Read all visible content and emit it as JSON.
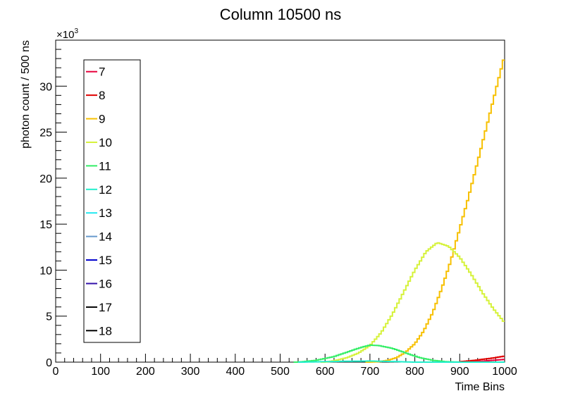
{
  "chart_data": {
    "type": "line",
    "title": "Column 10500 ns",
    "xlabel": "Time Bins",
    "ylabel": "photon count / 500 ns",
    "y_multiplier_label": "×10",
    "y_multiplier_exp": "3",
    "xlim": [
      0,
      1000
    ],
    "ylim": [
      0,
      35
    ],
    "x_ticks": [
      0,
      100,
      200,
      300,
      400,
      500,
      600,
      700,
      800,
      900,
      1000
    ],
    "y_ticks": [
      0,
      5,
      10,
      15,
      20,
      25,
      30
    ],
    "grid": false,
    "legend_position": "top-left",
    "series": [
      {
        "name": "7",
        "color": "#e8003a",
        "x": [
          900,
          925,
          950,
          975,
          1000
        ],
        "y": [
          0,
          0.05,
          0.1,
          0.2,
          0.3
        ]
      },
      {
        "name": "8",
        "color": "#e00000",
        "x": [
          900,
          925,
          950,
          975,
          1000
        ],
        "y": [
          0.05,
          0.15,
          0.3,
          0.45,
          0.65
        ]
      },
      {
        "name": "9",
        "color": "#f7c000",
        "x": [
          700,
          720,
          740,
          760,
          780,
          800,
          820,
          840,
          860,
          880,
          900,
          920,
          940,
          960,
          980,
          1000
        ],
        "y": [
          0,
          0.05,
          0.2,
          0.5,
          1.1,
          2.0,
          3.4,
          5.4,
          8.0,
          11.0,
          14.5,
          18.0,
          21.8,
          25.6,
          29.5,
          33.3
        ]
      },
      {
        "name": "10",
        "color": "#d6f23a",
        "x": [
          600,
          625,
          650,
          675,
          700,
          725,
          750,
          775,
          800,
          825,
          850,
          875,
          900,
          925,
          950,
          975,
          1000
        ],
        "y": [
          0,
          0.2,
          0.5,
          1.0,
          1.8,
          3.2,
          5.2,
          7.6,
          10.0,
          12.0,
          13.0,
          12.6,
          11.4,
          9.6,
          7.6,
          5.8,
          4.3
        ]
      },
      {
        "name": "11",
        "color": "#33ee66",
        "x": [
          540,
          580,
          620,
          650,
          680,
          700,
          720,
          750,
          780,
          810,
          840,
          870,
          900
        ],
        "y": [
          0,
          0.2,
          0.6,
          1.1,
          1.6,
          1.85,
          1.8,
          1.5,
          1.0,
          0.5,
          0.2,
          0.05,
          0
        ]
      },
      {
        "name": "12",
        "color": "#22eecc",
        "x": [
          550,
          600,
          650,
          700,
          750,
          800
        ],
        "y": [
          0,
          0.05,
          0.1,
          0.12,
          0.07,
          0
        ]
      },
      {
        "name": "13",
        "color": "#22e8f0",
        "x": [],
        "y": []
      },
      {
        "name": "14",
        "color": "#6699cc",
        "x": [],
        "y": []
      },
      {
        "name": "15",
        "color": "#0000cc",
        "x": [],
        "y": []
      },
      {
        "name": "16",
        "color": "#3311aa",
        "x": [],
        "y": []
      },
      {
        "name": "17",
        "color": "#000000",
        "x": [],
        "y": []
      },
      {
        "name": "18",
        "color": "#000000",
        "x": [],
        "y": []
      }
    ]
  }
}
